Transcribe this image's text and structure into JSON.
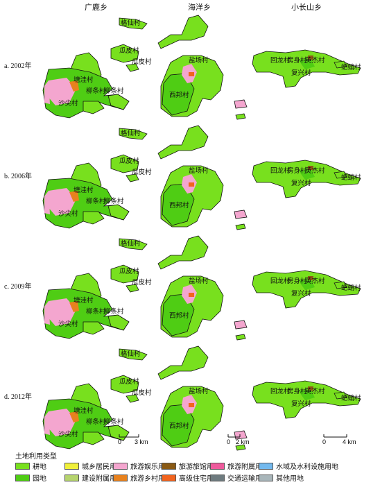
{
  "columns": [
    "广鹿乡",
    "海洋乡",
    "小长山乡"
  ],
  "rows": [
    "a. 2002年",
    "b. 2006年",
    "c. 2009年",
    "d. 2012年"
  ],
  "village_labels": {
    "guanglu": [
      "格仙村",
      "瓜皮村",
      "瓜皮村",
      "塘洼村",
      "柳条村",
      "柳条村",
      "沙尖村"
    ],
    "haiyang": [
      "盐场村",
      "西邦村"
    ],
    "xiaochangshan": [
      "回龙村",
      "房身村",
      "英杰村",
      "复兴村",
      "蚆蛸村"
    ]
  },
  "scalebars": [
    {
      "zero": "0",
      "end": "3 km"
    },
    {
      "zero": "0",
      "end": "2 km"
    },
    {
      "zero": "0",
      "end": "4 km"
    }
  ],
  "legend": {
    "title": "土地利用类型",
    "items": [
      {
        "label": "耕地",
        "color": "#78e01e"
      },
      {
        "label": "城乡居民用地",
        "color": "#f0f03a"
      },
      {
        "label": "旅游娱乐用地",
        "color": "#f4a6cf"
      },
      {
        "label": "旅游旅馆用地",
        "color": "#8a5a14"
      },
      {
        "label": "旅游附属用地",
        "color": "#ee5a9c"
      },
      {
        "label": "水域及水利设施用地",
        "color": "#73b9ee"
      },
      {
        "label": "园地",
        "color": "#4fcd14"
      },
      {
        "label": "建设附属用地",
        "color": "#b6d46e"
      },
      {
        "label": "旅游乡村用地",
        "color": "#e8821e"
      },
      {
        "label": "高级住宅用地",
        "color": "#f2641e"
      },
      {
        "label": "交通运输用地",
        "color": "#6e7b7f"
      },
      {
        "label": "其他用地",
        "color": "#a9b6ba"
      }
    ]
  }
}
